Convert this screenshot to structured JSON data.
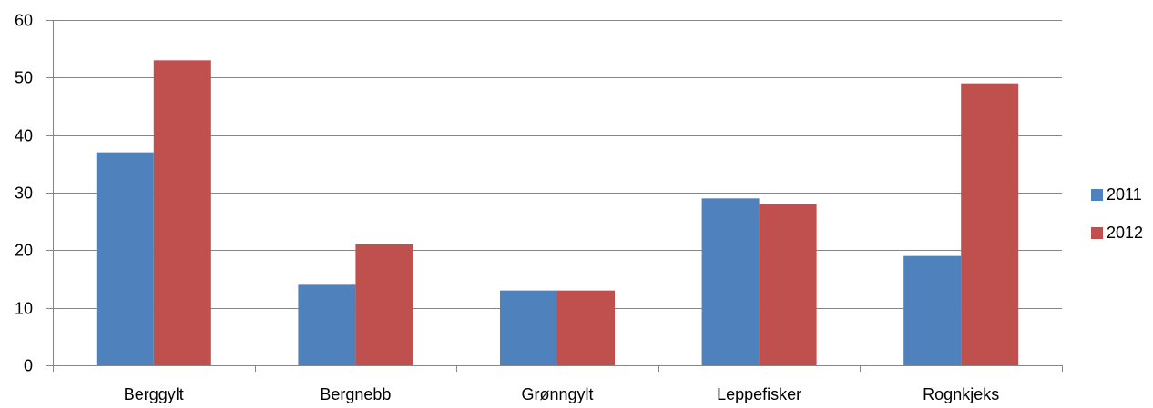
{
  "chart_data": {
    "type": "bar",
    "categories": [
      "Berggylt",
      "Bergnebb",
      "Grønngylt",
      "Leppefisker",
      "Rognkjeks"
    ],
    "series": [
      {
        "name": "2011",
        "values": [
          37,
          14,
          13,
          29,
          19
        ],
        "color": "#4F81BD"
      },
      {
        "name": "2012",
        "values": [
          53,
          21,
          13,
          28,
          49
        ],
        "color": "#C0504D"
      }
    ],
    "y_ticks": [
      "0",
      "10",
      "20",
      "30",
      "40",
      "50",
      "60"
    ],
    "ylim": [
      0,
      60
    ],
    "grid": true,
    "legend": "right",
    "title": "",
    "xlabel": "",
    "ylabel": ""
  }
}
